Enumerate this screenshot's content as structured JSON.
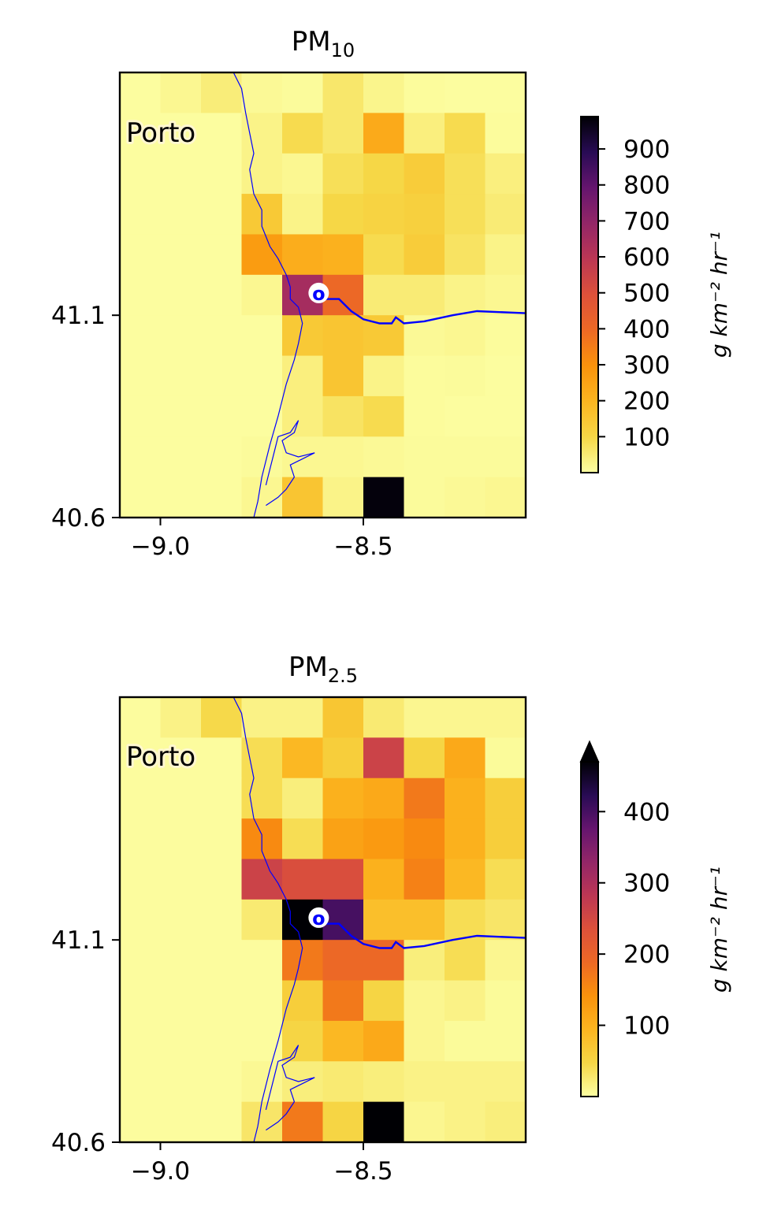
{
  "chart_data": [
    {
      "type": "heatmap",
      "title": "PM",
      "title_subscript": "10",
      "x_ticks": [
        -9.0,
        -8.5
      ],
      "x_tick_labels": [
        "−9.0",
        "−8.5"
      ],
      "y_ticks": [
        41.1,
        40.6
      ],
      "y_tick_labels": [
        "41.1",
        "40.6"
      ],
      "xlim": [
        -9.1,
        -8.1
      ],
      "ylim": [
        40.6,
        41.7
      ],
      "cell_lon_edges": [
        -9.1,
        -9.0,
        -8.9,
        -8.8,
        -8.7,
        -8.6,
        -8.5,
        -8.4,
        -8.3,
        -8.2,
        -8.1
      ],
      "cell_lat_edges": [
        41.7,
        41.6,
        41.5,
        41.4,
        41.3,
        41.2,
        41.1,
        41.0,
        40.9,
        40.8,
        40.7,
        40.6
      ],
      "values": [
        [
          5,
          20,
          45,
          15,
          10,
          60,
          25,
          8,
          5,
          5
        ],
        [
          5,
          5,
          5,
          30,
          90,
          60,
          230,
          40,
          90,
          8
        ],
        [
          5,
          5,
          5,
          30,
          20,
          80,
          100,
          130,
          80,
          40
        ],
        [
          5,
          5,
          5,
          140,
          30,
          100,
          110,
          120,
          80,
          50
        ],
        [
          5,
          5,
          5,
          270,
          220,
          210,
          90,
          130,
          70,
          30
        ],
        [
          5,
          5,
          5,
          20,
          650,
          400,
          50,
          50,
          30,
          20
        ],
        [
          5,
          5,
          5,
          5,
          140,
          150,
          140,
          15,
          20,
          8
        ],
        [
          5,
          5,
          5,
          5,
          40,
          150,
          30,
          8,
          10,
          5
        ],
        [
          5,
          5,
          5,
          5,
          40,
          70,
          90,
          8,
          5,
          5
        ],
        [
          5,
          5,
          5,
          10,
          20,
          20,
          15,
          10,
          10,
          10
        ],
        [
          5,
          5,
          5,
          20,
          150,
          30,
          980,
          10,
          15,
          20
        ]
      ],
      "colormap": "inferno_r",
      "vmin": 0,
      "vmax": 990,
      "colorbar_ticks": [
        100,
        200,
        300,
        400,
        500,
        600,
        700,
        800,
        900
      ],
      "colorbar_label": "g km⁻² hr⁻¹",
      "colorbar_extend": "neither",
      "annotation_city": "Porto",
      "marker_label": "o",
      "marker_location": [
        -8.61,
        41.155
      ]
    },
    {
      "type": "heatmap",
      "title": "PM",
      "title_subscript": "2.5",
      "x_ticks": [
        -9.0,
        -8.5
      ],
      "x_tick_labels": [
        "−9.0",
        "−8.5"
      ],
      "y_ticks": [
        41.1,
        40.6
      ],
      "y_tick_labels": [
        "41.1",
        "40.6"
      ],
      "xlim": [
        -9.1,
        -8.1
      ],
      "ylim": [
        40.6,
        41.7
      ],
      "cell_lon_edges": [
        -9.1,
        -9.0,
        -8.9,
        -8.8,
        -8.7,
        -8.6,
        -8.5,
        -8.4,
        -8.3,
        -8.2,
        -8.1
      ],
      "cell_lat_edges": [
        41.7,
        41.6,
        41.5,
        41.4,
        41.3,
        41.2,
        41.1,
        41.0,
        40.9,
        40.8,
        40.7,
        40.6
      ],
      "values": [
        [
          3,
          15,
          45,
          15,
          15,
          70,
          25,
          10,
          10,
          10
        ],
        [
          3,
          3,
          3,
          40,
          90,
          60,
          260,
          50,
          110,
          5
        ],
        [
          3,
          3,
          3,
          40,
          20,
          100,
          110,
          170,
          100,
          60
        ],
        [
          3,
          3,
          3,
          150,
          40,
          120,
          130,
          150,
          100,
          60
        ],
        [
          3,
          3,
          3,
          260,
          240,
          240,
          100,
          160,
          90,
          40
        ],
        [
          3,
          3,
          3,
          25,
          480,
          400,
          80,
          80,
          40,
          30
        ],
        [
          3,
          3,
          3,
          3,
          170,
          190,
          190,
          20,
          40,
          10
        ],
        [
          3,
          3,
          3,
          3,
          60,
          170,
          50,
          10,
          15,
          5
        ],
        [
          3,
          3,
          3,
          3,
          50,
          90,
          110,
          10,
          5,
          5
        ],
        [
          3,
          3,
          3,
          8,
          20,
          25,
          20,
          15,
          15,
          15
        ],
        [
          3,
          3,
          3,
          30,
          170,
          50,
          490,
          10,
          15,
          20
        ]
      ],
      "colormap": "inferno_r",
      "vmin": 0,
      "vmax": 470,
      "colorbar_ticks": [
        100,
        200,
        300,
        400
      ],
      "colorbar_label": "g km⁻² hr⁻¹",
      "colorbar_extend": "max",
      "annotation_city": "Porto",
      "marker_label": "o",
      "marker_location": [
        -8.61,
        41.155
      ]
    }
  ],
  "coast_lonlat": [
    [
      -8.82,
      41.7
    ],
    [
      -8.8,
      41.66
    ],
    [
      -8.79,
      41.6
    ],
    [
      -8.78,
      41.55
    ],
    [
      -8.77,
      41.5
    ],
    [
      -8.78,
      41.46
    ],
    [
      -8.77,
      41.4
    ],
    [
      -8.75,
      41.36
    ],
    [
      -8.75,
      41.32
    ],
    [
      -8.73,
      41.27
    ],
    [
      -8.71,
      41.24
    ],
    [
      -8.69,
      41.2
    ],
    [
      -8.68,
      41.17
    ],
    [
      -8.68,
      41.14
    ],
    [
      -8.66,
      41.12
    ],
    [
      -8.65,
      41.08
    ],
    [
      -8.66,
      41.03
    ],
    [
      -8.67,
      40.99
    ],
    [
      -8.69,
      40.93
    ],
    [
      -8.71,
      40.85
    ],
    [
      -8.73,
      40.78
    ],
    [
      -8.75,
      40.7
    ],
    [
      -8.76,
      40.64
    ],
    [
      -8.77,
      40.6
    ]
  ],
  "lagoon_lonlat": [
    [
      -8.74,
      40.63
    ],
    [
      -8.71,
      40.65
    ],
    [
      -8.69,
      40.67
    ],
    [
      -8.67,
      40.7
    ],
    [
      -8.68,
      40.73
    ],
    [
      -8.66,
      40.74
    ],
    [
      -8.62,
      40.76
    ],
    [
      -8.66,
      40.75
    ],
    [
      -8.69,
      40.76
    ],
    [
      -8.7,
      40.79
    ],
    [
      -8.67,
      40.81
    ],
    [
      -8.66,
      40.84
    ],
    [
      -8.68,
      40.81
    ],
    [
      -8.71,
      40.8
    ],
    [
      -8.72,
      40.76
    ],
    [
      -8.73,
      40.72
    ],
    [
      -8.74,
      40.68
    ]
  ],
  "river_lonlat": [
    [
      -8.61,
      41.14
    ],
    [
      -8.56,
      41.14
    ],
    [
      -8.53,
      41.11
    ],
    [
      -8.5,
      41.09
    ],
    [
      -8.46,
      41.08
    ],
    [
      -8.43,
      41.08
    ],
    [
      -8.42,
      41.095
    ],
    [
      -8.4,
      41.08
    ],
    [
      -8.35,
      41.085
    ],
    [
      -8.28,
      41.1
    ],
    [
      -8.22,
      41.11
    ],
    [
      -8.1,
      41.105
    ]
  ],
  "colors": {
    "coastline": "#0000ff",
    "axis": "#000000",
    "background": "#ffffff"
  }
}
